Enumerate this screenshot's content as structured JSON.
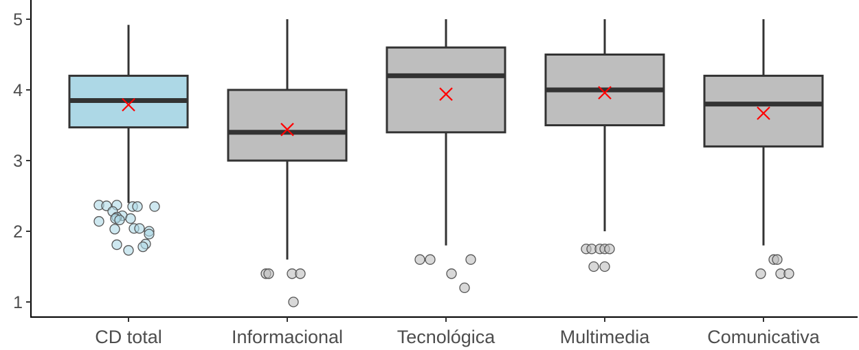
{
  "chart_data": {
    "type": "boxplot",
    "title": "",
    "xlabel": "",
    "ylabel": "",
    "ylim": [
      0.8,
      5.2
    ],
    "yticks": [
      1,
      2,
      3,
      4,
      5
    ],
    "grid": false,
    "legend": "none",
    "colors": {
      "highlight_fill": "#add8e6",
      "box_fill": "#bebebe",
      "line": "#333333",
      "mean_marker": "#ff0000",
      "axis": "#000000"
    },
    "categories": [
      "CD total",
      "Informacional",
      "Tecnológica",
      "Multimedia",
      "Comunicativa"
    ],
    "series": [
      {
        "category": "CD total",
        "highlight": true,
        "min": 2.4,
        "q1": 3.47,
        "median": 3.85,
        "q3": 4.2,
        "max": 4.92,
        "mean": 3.79,
        "outliers": [
          {
            "x": -0.43,
            "y": 2.37
          },
          {
            "x": -0.32,
            "y": 2.36
          },
          {
            "x": -0.17,
            "y": 2.37
          },
          {
            "x": 0.06,
            "y": 2.35
          },
          {
            "x": 0.13,
            "y": 2.35
          },
          {
            "x": 0.38,
            "y": 2.35
          },
          {
            "x": -0.23,
            "y": 2.28
          },
          {
            "x": -0.09,
            "y": 2.22
          },
          {
            "x": -0.17,
            "y": 2.2
          },
          {
            "x": -0.19,
            "y": 2.18
          },
          {
            "x": -0.13,
            "y": 2.16
          },
          {
            "x": -0.43,
            "y": 2.14
          },
          {
            "x": 0.03,
            "y": 2.18
          },
          {
            "x": 0.08,
            "y": 2.04
          },
          {
            "x": 0.16,
            "y": 2.04
          },
          {
            "x": -0.2,
            "y": 2.03
          },
          {
            "x": 0.3,
            "y": 2.0
          },
          {
            "x": 0.3,
            "y": 1.96
          },
          {
            "x": -0.17,
            "y": 1.81
          },
          {
            "x": 0.25,
            "y": 1.82
          },
          {
            "x": 0.21,
            "y": 1.78
          },
          {
            "x": 0.0,
            "y": 1.73
          }
        ]
      },
      {
        "category": "Informacional",
        "highlight": false,
        "min": 1.6,
        "q1": 3.0,
        "median": 3.4,
        "q3": 4.0,
        "max": 5.0,
        "mean": 3.44,
        "outliers": [
          {
            "x": -0.31,
            "y": 1.4
          },
          {
            "x": -0.27,
            "y": 1.4
          },
          {
            "x": 0.07,
            "y": 1.4
          },
          {
            "x": 0.19,
            "y": 1.4
          },
          {
            "x": 0.09,
            "y": 1.0
          }
        ]
      },
      {
        "category": "Tecnológica",
        "highlight": false,
        "min": 1.8,
        "q1": 3.4,
        "median": 4.2,
        "q3": 4.6,
        "max": 5.0,
        "mean": 3.94,
        "outliers": [
          {
            "x": -0.38,
            "y": 1.6
          },
          {
            "x": -0.23,
            "y": 1.6
          },
          {
            "x": 0.36,
            "y": 1.6
          },
          {
            "x": 0.08,
            "y": 1.4
          },
          {
            "x": 0.27,
            "y": 1.2
          }
        ]
      },
      {
        "category": "Multimedia",
        "highlight": false,
        "min": 2.0,
        "q1": 3.5,
        "median": 4.0,
        "q3": 4.5,
        "max": 5.0,
        "mean": 3.96,
        "outliers": [
          {
            "x": -0.27,
            "y": 1.75
          },
          {
            "x": -0.19,
            "y": 1.75
          },
          {
            "x": -0.07,
            "y": 1.75
          },
          {
            "x": 0.0,
            "y": 1.75
          },
          {
            "x": 0.07,
            "y": 1.75
          },
          {
            "x": -0.16,
            "y": 1.5
          },
          {
            "x": 0.0,
            "y": 1.5
          }
        ]
      },
      {
        "category": "Comunicativa",
        "highlight": false,
        "min": 1.8,
        "q1": 3.2,
        "median": 3.8,
        "q3": 4.2,
        "max": 5.0,
        "mean": 3.67,
        "outliers": [
          {
            "x": 0.15,
            "y": 1.6
          },
          {
            "x": 0.2,
            "y": 1.6
          },
          {
            "x": -0.04,
            "y": 1.4
          },
          {
            "x": 0.25,
            "y": 1.4
          },
          {
            "x": 0.37,
            "y": 1.4
          }
        ]
      }
    ]
  }
}
